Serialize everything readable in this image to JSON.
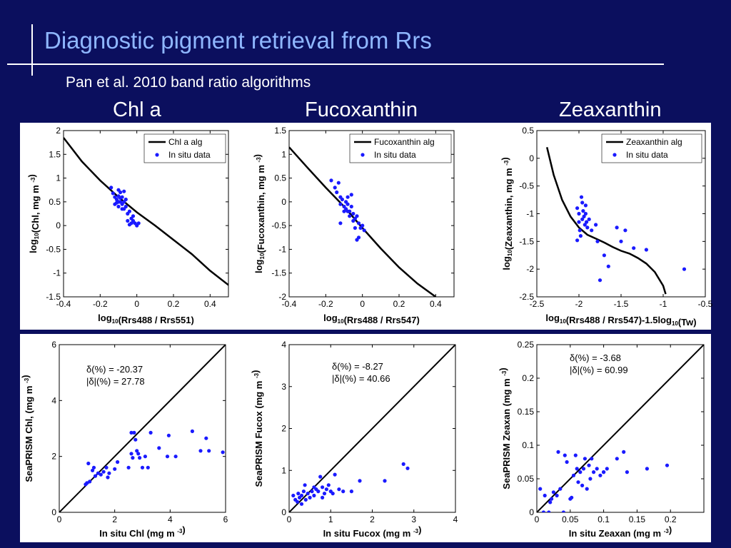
{
  "title": "Diagnostic pigment retrieval from Rrs",
  "subtitle": "Pan et al. 2010 band ratio algorithms",
  "column_titles": [
    "Chl a",
    "Fucoxanthin",
    "Zeaxanthin"
  ],
  "colors": {
    "background": "#0b0f5e",
    "title": "#8fb7ff",
    "data": "#1a1aff",
    "line": "#000000"
  },
  "chart_data": [
    {
      "type": "line",
      "xlabel": "log10(Rrs488 / Rrs551)",
      "ylabel": "log10(Chl, mg m-3)",
      "xlim": [
        -0.4,
        0.5
      ],
      "ylim": [
        -1.5,
        2
      ],
      "xticks": [
        "-0.4",
        "-0.2",
        "0",
        "0.2",
        "0.4"
      ],
      "xtick_values": [
        -0.4,
        -0.2,
        0,
        0.2,
        0.4
      ],
      "yticks": [
        "-1.5",
        "-1",
        "-0.5",
        "0",
        "0.5",
        "1",
        "1.5",
        "2"
      ],
      "ytick_values": [
        -1.5,
        -1,
        -0.5,
        0,
        0.5,
        1,
        1.5,
        2
      ],
      "legend": [
        "Chl a alg",
        "In situ data"
      ],
      "legend_position": "top-right",
      "curve": [
        [
          -0.4,
          1.85
        ],
        [
          -0.3,
          1.35
        ],
        [
          -0.2,
          0.95
        ],
        [
          -0.1,
          0.6
        ],
        [
          0,
          0.28
        ],
        [
          0.1,
          0.0
        ],
        [
          0.2,
          -0.3
        ],
        [
          0.3,
          -0.6
        ],
        [
          0.4,
          -0.95
        ],
        [
          0.5,
          -1.25
        ]
      ],
      "points": [
        [
          -0.14,
          0.8
        ],
        [
          -0.13,
          0.68
        ],
        [
          -0.12,
          0.6
        ],
        [
          -0.12,
          0.45
        ],
        [
          -0.11,
          0.55
        ],
        [
          -0.11,
          0.48
        ],
        [
          -0.1,
          0.75
        ],
        [
          -0.1,
          0.62
        ],
        [
          -0.1,
          0.5
        ],
        [
          -0.1,
          0.4
        ],
        [
          -0.09,
          0.7
        ],
        [
          -0.09,
          0.58
        ],
        [
          -0.09,
          0.5
        ],
        [
          -0.08,
          0.45
        ],
        [
          -0.08,
          0.35
        ],
        [
          -0.08,
          0.6
        ],
        [
          -0.07,
          0.72
        ],
        [
          -0.07,
          0.5
        ],
        [
          -0.07,
          0.35
        ],
        [
          -0.06,
          0.55
        ],
        [
          -0.06,
          0.4
        ],
        [
          -0.05,
          0.25
        ],
        [
          -0.05,
          0.1
        ],
        [
          -0.04,
          0.3
        ],
        [
          -0.03,
          0.15
        ],
        [
          -0.03,
          0.05
        ],
        [
          -0.02,
          0.2
        ],
        [
          -0.02,
          0.1
        ],
        [
          -0.01,
          0.05
        ],
        [
          0.0,
          0.0
        ],
        [
          0.01,
          0.05
        ],
        [
          -0.04,
          0.02
        ]
      ]
    },
    {
      "type": "line",
      "xlabel": "log10(Rrs488 / Rrs547)",
      "ylabel": "log10(Fucoxanthin, mg m-3)",
      "xlim": [
        -0.4,
        0.5
      ],
      "ylim": [
        -2,
        1.5
      ],
      "xticks": [
        "-0.4",
        "-0.2",
        "0",
        "0.2",
        "0.4"
      ],
      "xtick_values": [
        -0.4,
        -0.2,
        0,
        0.2,
        0.4
      ],
      "yticks": [
        "-2",
        "-1.5",
        "-1",
        "-0.5",
        "0",
        "0.5",
        "1",
        "1.5"
      ],
      "ytick_values": [
        -2,
        -1.5,
        -1,
        -0.5,
        0,
        0.5,
        1,
        1.5
      ],
      "legend": [
        "Fucoxanthin alg",
        "In situ data"
      ],
      "legend_position": "top-right",
      "curve": [
        [
          -0.4,
          1.15
        ],
        [
          -0.3,
          0.72
        ],
        [
          -0.2,
          0.3
        ],
        [
          -0.1,
          -0.1
        ],
        [
          0,
          -0.55
        ],
        [
          0.1,
          -0.98
        ],
        [
          0.2,
          -1.38
        ],
        [
          0.3,
          -1.72
        ],
        [
          0.4,
          -2.0
        ]
      ],
      "points": [
        [
          -0.17,
          0.45
        ],
        [
          -0.15,
          0.3
        ],
        [
          -0.14,
          0.2
        ],
        [
          -0.13,
          0.4
        ],
        [
          -0.12,
          0.1
        ],
        [
          -0.12,
          -0.05
        ],
        [
          -0.11,
          0.05
        ],
        [
          -0.1,
          -0.1
        ],
        [
          -0.1,
          -0.2
        ],
        [
          -0.09,
          0.0
        ],
        [
          -0.09,
          -0.15
        ],
        [
          -0.08,
          0.1
        ],
        [
          -0.08,
          -0.05
        ],
        [
          -0.07,
          -0.2
        ],
        [
          -0.07,
          -0.3
        ],
        [
          -0.06,
          0.15
        ],
        [
          -0.06,
          -0.1
        ],
        [
          -0.05,
          -0.25
        ],
        [
          -0.05,
          -0.4
        ],
        [
          -0.04,
          -0.35
        ],
        [
          -0.04,
          -0.55
        ],
        [
          -0.03,
          -0.3
        ],
        [
          -0.03,
          -0.8
        ],
        [
          -0.02,
          -0.75
        ],
        [
          -0.02,
          -0.45
        ],
        [
          -0.01,
          -0.55
        ],
        [
          0.0,
          -0.5
        ],
        [
          0.01,
          -0.6
        ],
        [
          -0.12,
          -0.45
        ],
        [
          -0.08,
          -0.2
        ]
      ]
    },
    {
      "type": "line",
      "xlabel": "log10(Rrs488 / Rrs547)-1.5log10(Tw)",
      "ylabel": "log10(Zeaxanthin, mg m-3)",
      "xlim": [
        -2.5,
        -0.5
      ],
      "ylim": [
        -2.5,
        0.5
      ],
      "xticks": [
        "-2.5",
        "-2",
        "-1.5",
        "-1",
        "-0.5"
      ],
      "xtick_values": [
        -2.5,
        -2,
        -1.5,
        -1,
        -0.5
      ],
      "yticks": [
        "-2.5",
        "-2",
        "-1.5",
        "-1",
        "-0.5",
        "0",
        "0.5"
      ],
      "ytick_values": [
        -2.5,
        -2,
        -1.5,
        -1,
        -0.5,
        0,
        0.5
      ],
      "legend": [
        "Zeaxanthin alg",
        "In situ data"
      ],
      "legend_position": "top-right",
      "curve": [
        [
          -2.38,
          0.2
        ],
        [
          -2.3,
          -0.3
        ],
        [
          -2.2,
          -0.75
        ],
        [
          -2.1,
          -1.05
        ],
        [
          -2.0,
          -1.25
        ],
        [
          -1.9,
          -1.38
        ],
        [
          -1.8,
          -1.45
        ],
        [
          -1.7,
          -1.52
        ],
        [
          -1.6,
          -1.6
        ],
        [
          -1.5,
          -1.67
        ],
        [
          -1.4,
          -1.72
        ],
        [
          -1.3,
          -1.8
        ],
        [
          -1.2,
          -1.9
        ],
        [
          -1.1,
          -2.05
        ],
        [
          -1.0,
          -2.3
        ],
        [
          -0.97,
          -2.45
        ]
      ],
      "points": [
        [
          -2.02,
          -0.9
        ],
        [
          -2.0,
          -1.0
        ],
        [
          -2.0,
          -1.15
        ],
        [
          -1.99,
          -1.3
        ],
        [
          -1.98,
          -1.4
        ],
        [
          -1.97,
          -0.7
        ],
        [
          -1.96,
          -0.8
        ],
        [
          -1.96,
          -1.1
        ],
        [
          -1.95,
          -0.95
        ],
        [
          -1.94,
          -1.05
        ],
        [
          -1.93,
          -1.2
        ],
        [
          -1.92,
          -0.85
        ],
        [
          -1.92,
          -1.0
        ],
        [
          -1.91,
          -1.15
        ],
        [
          -1.9,
          -1.25
        ],
        [
          -1.88,
          -1.1
        ],
        [
          -1.85,
          -1.3
        ],
        [
          -1.8,
          -1.2
        ],
        [
          -1.78,
          -1.5
        ],
        [
          -1.75,
          -2.2
        ],
        [
          -1.7,
          -1.75
        ],
        [
          -1.65,
          -1.95
        ],
        [
          -1.55,
          -1.25
        ],
        [
          -1.5,
          -1.5
        ],
        [
          -1.45,
          -1.3
        ],
        [
          -1.35,
          -1.62
        ],
        [
          -1.2,
          -1.65
        ],
        [
          -0.75,
          -2.0
        ],
        [
          -2.02,
          -1.48
        ]
      ]
    },
    {
      "type": "scatter",
      "xlabel": "In situ Chl (mg m-3)",
      "ylabel": "SeaPRISM Chl, (mg m-3)",
      "xlim": [
        0,
        6
      ],
      "ylim": [
        0,
        6
      ],
      "xticks": [
        "0",
        "2",
        "4",
        "6"
      ],
      "xtick_values": [
        0,
        2,
        4,
        6
      ],
      "yticks": [
        "0",
        "2",
        "4",
        "6"
      ],
      "ytick_values": [
        0,
        2,
        4,
        6
      ],
      "stats": [
        "δ(%) = -20.37",
        "|δ|(%) = 27.78"
      ],
      "one_to_one": [
        [
          0,
          0
        ],
        [
          6,
          6
        ]
      ],
      "points": [
        [
          0.95,
          1.0
        ],
        [
          1.0,
          1.05
        ],
        [
          1.05,
          1.75
        ],
        [
          1.1,
          1.1
        ],
        [
          1.2,
          1.5
        ],
        [
          1.25,
          1.6
        ],
        [
          1.3,
          1.3
        ],
        [
          1.4,
          1.4
        ],
        [
          1.5,
          1.35
        ],
        [
          1.6,
          1.45
        ],
        [
          1.7,
          1.6
        ],
        [
          1.75,
          1.25
        ],
        [
          1.8,
          1.4
        ],
        [
          2.0,
          1.55
        ],
        [
          2.1,
          1.8
        ],
        [
          2.5,
          1.6
        ],
        [
          2.6,
          2.1
        ],
        [
          2.6,
          2.85
        ],
        [
          2.65,
          1.95
        ],
        [
          2.7,
          2.85
        ],
        [
          2.75,
          2.6
        ],
        [
          2.8,
          2.2
        ],
        [
          2.85,
          2.1
        ],
        [
          2.9,
          1.95
        ],
        [
          3.0,
          1.6
        ],
        [
          3.1,
          2.0
        ],
        [
          3.2,
          1.6
        ],
        [
          3.3,
          2.85
        ],
        [
          3.6,
          2.3
        ],
        [
          3.9,
          2.0
        ],
        [
          3.95,
          2.75
        ],
        [
          4.2,
          2.0
        ],
        [
          4.8,
          2.9
        ],
        [
          5.1,
          2.2
        ],
        [
          5.3,
          2.65
        ],
        [
          5.4,
          2.2
        ],
        [
          5.9,
          2.15
        ]
      ]
    },
    {
      "type": "scatter",
      "xlabel": "In situ Fucox (mg m-3)",
      "ylabel": "SeaPRISM Fucox (mg m-3)",
      "xlim": [
        0,
        4
      ],
      "ylim": [
        0,
        4
      ],
      "xticks": [
        "0",
        "1",
        "2",
        "3",
        "4"
      ],
      "xtick_values": [
        0,
        1,
        2,
        3,
        4
      ],
      "yticks": [
        "0",
        "1",
        "2",
        "3",
        "4"
      ],
      "ytick_values": [
        0,
        1,
        2,
        3,
        4
      ],
      "stats": [
        "δ(%) = -8.27",
        "|δ|(%) = 40.66"
      ],
      "one_to_one": [
        [
          0,
          0
        ],
        [
          4,
          4
        ]
      ],
      "points": [
        [
          0.1,
          0.4
        ],
        [
          0.15,
          0.3
        ],
        [
          0.2,
          0.25
        ],
        [
          0.22,
          0.45
        ],
        [
          0.25,
          0.35
        ],
        [
          0.3,
          0.4
        ],
        [
          0.35,
          0.5
        ],
        [
          0.38,
          0.65
        ],
        [
          0.4,
          0.3
        ],
        [
          0.45,
          0.45
        ],
        [
          0.5,
          0.35
        ],
        [
          0.55,
          0.5
        ],
        [
          0.6,
          0.6
        ],
        [
          0.65,
          0.55
        ],
        [
          0.7,
          0.5
        ],
        [
          0.75,
          0.85
        ],
        [
          0.8,
          0.6
        ],
        [
          0.85,
          0.45
        ],
        [
          0.9,
          0.55
        ],
        [
          0.95,
          0.65
        ],
        [
          1.0,
          0.5
        ],
        [
          1.05,
          0.45
        ],
        [
          1.1,
          0.9
        ],
        [
          1.2,
          0.55
        ],
        [
          1.3,
          0.5
        ],
        [
          1.5,
          0.5
        ],
        [
          1.7,
          0.75
        ],
        [
          2.3,
          0.75
        ],
        [
          2.75,
          1.15
        ],
        [
          2.85,
          1.05
        ],
        [
          0.3,
          0.2
        ],
        [
          0.6,
          0.4
        ],
        [
          0.8,
          0.35
        ]
      ]
    },
    {
      "type": "scatter",
      "xlabel": "In situ Zeaxan (mg m-3)",
      "ylabel": "SeaPRISM Zeaxan (mg m-3)",
      "xlim": [
        0,
        0.25
      ],
      "ylim": [
        0,
        0.25
      ],
      "xticks": [
        "0",
        "0.05",
        "0.1",
        "0.15",
        "0.2"
      ],
      "xtick_values": [
        0,
        0.05,
        0.1,
        0.15,
        0.2
      ],
      "yticks": [
        "0",
        "0.05",
        "0.1",
        "0.15",
        "0.2",
        "0.25"
      ],
      "ytick_values": [
        0,
        0.05,
        0.1,
        0.15,
        0.2,
        0.25
      ],
      "stats": [
        "δ(%) = -3.68",
        "|δ|(%) = 60.99"
      ],
      "one_to_one": [
        [
          0,
          0
        ],
        [
          0.25,
          0.25
        ]
      ],
      "points": [
        [
          0.005,
          0.035
        ],
        [
          0.01,
          0.0
        ],
        [
          0.012,
          0.025
        ],
        [
          0.018,
          0.0
        ],
        [
          0.02,
          0.015
        ],
        [
          0.022,
          0.02
        ],
        [
          0.025,
          0.03
        ],
        [
          0.03,
          0.025
        ],
        [
          0.032,
          0.09
        ],
        [
          0.035,
          0.035
        ],
        [
          0.04,
          0.0
        ],
        [
          0.042,
          0.085
        ],
        [
          0.045,
          0.075
        ],
        [
          0.05,
          0.02
        ],
        [
          0.052,
          0.022
        ],
        [
          0.055,
          0.055
        ],
        [
          0.058,
          0.085
        ],
        [
          0.06,
          0.065
        ],
        [
          0.062,
          0.045
        ],
        [
          0.065,
          0.06
        ],
        [
          0.068,
          0.04
        ],
        [
          0.07,
          0.065
        ],
        [
          0.072,
          0.08
        ],
        [
          0.075,
          0.035
        ],
        [
          0.078,
          0.07
        ],
        [
          0.08,
          0.05
        ],
        [
          0.082,
          0.08
        ],
        [
          0.085,
          0.06
        ],
        [
          0.09,
          0.065
        ],
        [
          0.095,
          0.055
        ],
        [
          0.1,
          0.06
        ],
        [
          0.105,
          0.065
        ],
        [
          0.12,
          0.08
        ],
        [
          0.13,
          0.09
        ],
        [
          0.135,
          0.06
        ],
        [
          0.165,
          0.065
        ],
        [
          0.195,
          0.07
        ],
        [
          0.1,
          0.06
        ]
      ]
    }
  ]
}
